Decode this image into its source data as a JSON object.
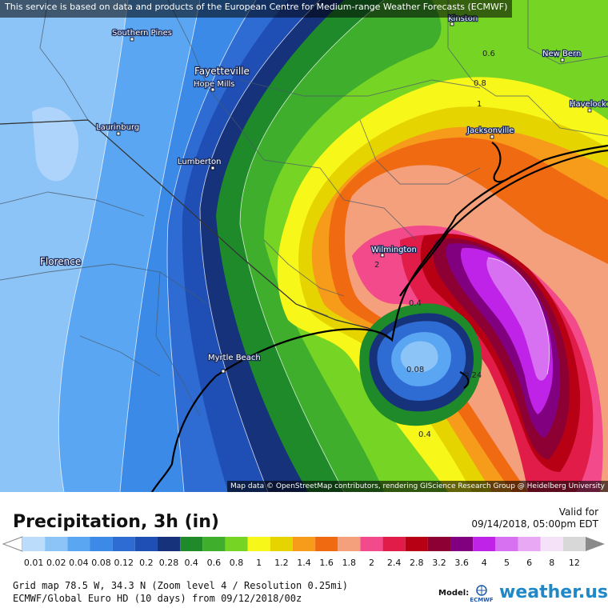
{
  "map": {
    "attribution_top": "This service is based on data and products of the European Centre for Medium-range Weather Forecasts (ECMWF)",
    "attribution_bottom": "Map data © OpenStreetMap contributors, rendering GIScience Research Group @ Heidelberg University",
    "cities": [
      {
        "name": "Kinston",
        "big": false
      },
      {
        "name": "New Bern",
        "big": false
      },
      {
        "name": "Havelock",
        "big": false
      },
      {
        "name": "Southern Pines",
        "big": false
      },
      {
        "name": "Fayetteville",
        "big": true
      },
      {
        "name": "Hope Mills",
        "big": false
      },
      {
        "name": "Laurinburg",
        "big": false
      },
      {
        "name": "Lumberton",
        "big": false
      },
      {
        "name": "Jacksonville",
        "big": false
      },
      {
        "name": "Wilmington",
        "big": false
      },
      {
        "name": "Florence",
        "big": true
      },
      {
        "name": "Myrtle Beach",
        "big": false
      }
    ],
    "contour_labels": [
      "0.6",
      "0.8",
      "1",
      "2",
      "0.4",
      "0.08",
      "0.24",
      "0.4"
    ],
    "colors": {
      "c001": "#bcdcfc",
      "c002": "#8cc4f8",
      "c004": "#5aa6f2",
      "c008": "#3c8ae8",
      "c012": "#2e6cd4",
      "c02": "#1f4fb5",
      "c028": "#16327a",
      "c04": "#1f8a2a",
      "c06": "#3fae2c",
      "c08": "#76d424",
      "c1": "#f7f71a",
      "c12": "#e6d400",
      "c14": "#f79b1a",
      "c16": "#f06a12",
      "c18": "#f5a07c",
      "c2": "#f24a8a",
      "c24": "#e21c48",
      "c28": "#b80014",
      "c32": "#8c0033",
      "c36": "#800080",
      "c4": "#c023e8",
      "c5": "#d870f2",
      "c6": "#e8a8f4"
    }
  },
  "legend": {
    "title": "Precipitation, 3h (in)",
    "valid_label": "Valid for",
    "valid_time": "09/14/2018, 05:00pm EDT",
    "bins": [
      {
        "label": "0.01",
        "color": "#bcdcfc"
      },
      {
        "label": "0.02",
        "color": "#8cc4f8"
      },
      {
        "label": "0.04",
        "color": "#5aa6f2"
      },
      {
        "label": "0.08",
        "color": "#3c8ae8"
      },
      {
        "label": "0.12",
        "color": "#2e6cd4"
      },
      {
        "label": "0.2",
        "color": "#1f4fb5"
      },
      {
        "label": "0.28",
        "color": "#16327a"
      },
      {
        "label": "0.4",
        "color": "#1f8a2a"
      },
      {
        "label": "0.6",
        "color": "#3fae2c"
      },
      {
        "label": "0.8",
        "color": "#76d424"
      },
      {
        "label": "1",
        "color": "#f7f71a"
      },
      {
        "label": "1.2",
        "color": "#e6d400"
      },
      {
        "label": "1.4",
        "color": "#f79b1a"
      },
      {
        "label": "1.6",
        "color": "#f06a12"
      },
      {
        "label": "1.8",
        "color": "#f5a07c"
      },
      {
        "label": "2",
        "color": "#f24a8a"
      },
      {
        "label": "2.4",
        "color": "#e21c48"
      },
      {
        "label": "2.8",
        "color": "#b80014"
      },
      {
        "label": "3.2",
        "color": "#8c0033"
      },
      {
        "label": "3.6",
        "color": "#800080"
      },
      {
        "label": "4",
        "color": "#c023e8"
      },
      {
        "label": "5",
        "color": "#d870f2"
      },
      {
        "label": "6",
        "color": "#e8a8f4"
      },
      {
        "label": "8",
        "color": "#f6e2f8"
      },
      {
        "label": "12",
        "color": "#d8d8d8"
      }
    ]
  },
  "info": {
    "grid_line": "Grid map 78.5 W, 34.3 N (Zoom level 4 / Resolution 0.25mi)",
    "model_line": "ECMWF/Global Euro HD (10 days) from 09/12/2018/00z",
    "model_label": "Model:",
    "ecmwf_logo_text": "ECMWF",
    "brand": "weather.us"
  }
}
